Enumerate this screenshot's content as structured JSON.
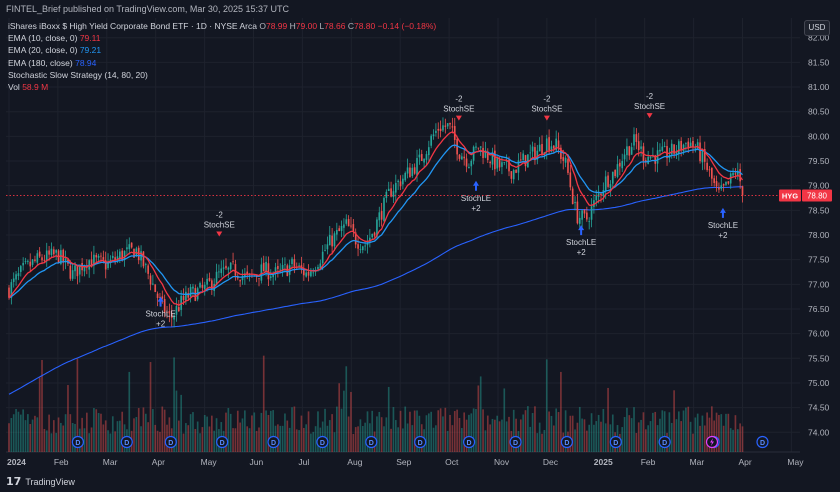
{
  "header": {
    "published_by": "FINTEL_Brief published on TradingView.com, Mar 30, 2025 15:37 UTC"
  },
  "legend": {
    "instrument": "iShares iBoxx $ High Yield Corporate Bond ETF · 1D · NYSE Arca",
    "ohlc": {
      "open_label": "O",
      "open": "78.99",
      "high_label": "H",
      "high": "79.00",
      "low_label": "L",
      "low": "78.66",
      "close_label": "C",
      "close": "78.80",
      "change": "−0.14 (−0.18%)"
    },
    "ema10": {
      "label": "EMA (10, close, 0)",
      "value": "79.11"
    },
    "ema20": {
      "label": "EMA (20, close, 0)",
      "value": "79.21"
    },
    "ema180": {
      "label": "EMA (180, close)",
      "value": "78.94"
    },
    "strategy": {
      "label": "Stochastic Slow Strategy (14, 80, 20)"
    },
    "vol": {
      "label": "Vol",
      "value": "58.9 M"
    }
  },
  "currency_button": "USD",
  "footer": {
    "brand": "TradingView"
  },
  "colors": {
    "up": "#26a69a",
    "down": "#ef5350",
    "ema10": "#f23645",
    "ema20": "#2196f3",
    "ema180": "#2962ff",
    "signal": "#2962ff",
    "price_tag": "#f23645"
  },
  "chart_data": {
    "type": "candlestick",
    "ticker": "HYG",
    "last_price": 78.8,
    "ylim": [
      73.6,
      82.4
    ],
    "y_ticks": [
      "82.00",
      "81.50",
      "81.00",
      "80.50",
      "80.00",
      "79.50",
      "79.00",
      "78.50",
      "78.00",
      "77.50",
      "77.00",
      "76.50",
      "76.00",
      "75.50",
      "75.00",
      "74.50",
      "74.00"
    ],
    "x_ticks": [
      "2024",
      "Feb",
      "Mar",
      "Apr",
      "May",
      "Jun",
      "Jul",
      "Aug",
      "Sep",
      "Oct",
      "Nov",
      "Dec",
      "2025",
      "Feb",
      "Mar",
      "Apr",
      "May"
    ],
    "x_tick_months": [
      0,
      1,
      2,
      3,
      4,
      5,
      6,
      7,
      8,
      9,
      10,
      11,
      12,
      13,
      14,
      15,
      16
    ],
    "price_anchors": [
      [
        0,
        76.9
      ],
      [
        0.3,
        77.3
      ],
      [
        0.6,
        77.5
      ],
      [
        1.0,
        77.6
      ],
      [
        1.3,
        77.2
      ],
      [
        1.6,
        77.5
      ],
      [
        2.0,
        77.4
      ],
      [
        2.3,
        77.6
      ],
      [
        2.6,
        77.7
      ],
      [
        2.9,
        77.1
      ],
      [
        3.1,
        76.6
      ],
      [
        3.3,
        76.3
      ],
      [
        3.5,
        76.6
      ],
      [
        3.7,
        76.8
      ],
      [
        4.0,
        76.9
      ],
      [
        4.3,
        77.2
      ],
      [
        4.6,
        77.3
      ],
      [
        4.9,
        77.1
      ],
      [
        5.2,
        77.3
      ],
      [
        5.5,
        77.2
      ],
      [
        5.8,
        77.4
      ],
      [
        6.1,
        77.2
      ],
      [
        6.4,
        77.6
      ],
      [
        6.6,
        77.9
      ],
      [
        6.9,
        78.2
      ],
      [
        7.1,
        77.9
      ],
      [
        7.3,
        77.8
      ],
      [
        7.5,
        78.2
      ],
      [
        7.8,
        78.9
      ],
      [
        8.1,
        79.2
      ],
      [
        8.4,
        79.5
      ],
      [
        8.6,
        79.9
      ],
      [
        8.8,
        80.2
      ],
      [
        9.0,
        80.2
      ],
      [
        9.2,
        79.7
      ],
      [
        9.4,
        79.5
      ],
      [
        9.6,
        79.8
      ],
      [
        9.8,
        79.6
      ],
      [
        10.0,
        79.4
      ],
      [
        10.3,
        79.3
      ],
      [
        10.5,
        79.5
      ],
      [
        10.8,
        79.7
      ],
      [
        11.0,
        79.9
      ],
      [
        11.2,
        79.8
      ],
      [
        11.4,
        79.4
      ],
      [
        11.6,
        78.4
      ],
      [
        11.8,
        78.3
      ],
      [
        12.0,
        78.7
      ],
      [
        12.2,
        79.1
      ],
      [
        12.4,
        79.3
      ],
      [
        12.6,
        79.7
      ],
      [
        12.8,
        79.9
      ],
      [
        13.0,
        79.6
      ],
      [
        13.3,
        79.6
      ],
      [
        13.6,
        79.7
      ],
      [
        13.9,
        79.9
      ],
      [
        14.1,
        79.7
      ],
      [
        14.3,
        79.3
      ],
      [
        14.5,
        78.8
      ],
      [
        14.7,
        79.0
      ],
      [
        14.85,
        79.3
      ],
      [
        14.95,
        79.1
      ],
      [
        15.0,
        78.8
      ]
    ],
    "signals": [
      {
        "type": "short",
        "label": "StochSE",
        "qty": "-2",
        "month": 4.3,
        "price": 77.95
      },
      {
        "type": "long",
        "label": "StochLE",
        "qty": "+2",
        "month": 3.1,
        "price": 76.75
      },
      {
        "type": "short",
        "label": "StochSE",
        "qty": "-2",
        "month": 9.2,
        "price": 80.3
      },
      {
        "type": "long",
        "label": "StochLE",
        "qty": "+2",
        "month": 9.55,
        "price": 79.1
      },
      {
        "type": "short",
        "label": "StochSE",
        "qty": "-2",
        "month": 11.0,
        "price": 80.3
      },
      {
        "type": "long",
        "label": "StochLE",
        "qty": "+2",
        "month": 11.7,
        "price": 78.2
      },
      {
        "type": "short",
        "label": "StochSE",
        "qty": "-2",
        "month": 13.1,
        "price": 80.35
      },
      {
        "type": "long",
        "label": "StochLE",
        "qty": "+2",
        "month": 14.6,
        "price": 78.55
      }
    ],
    "dividend_marker_months": [
      0.1,
      1.1,
      2.0,
      3.05,
      4.1,
      5.1,
      6.1,
      7.1,
      8.1,
      9.05,
      10.1,
      11.1,
      12.1,
      13.1,
      14.1
    ],
    "dividend_label": "D",
    "earnings_marker_month": 15.1
  }
}
